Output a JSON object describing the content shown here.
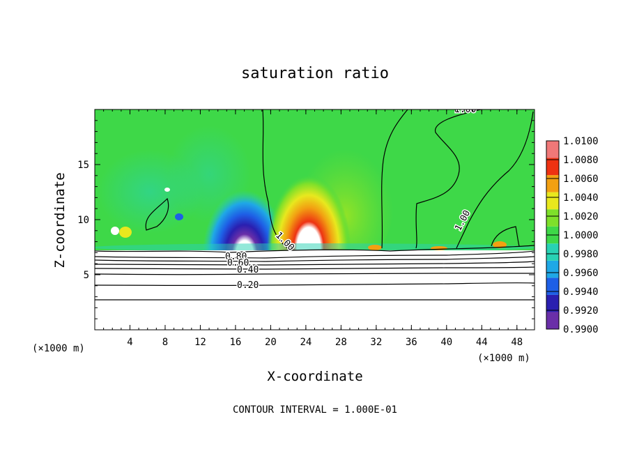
{
  "chart_data": {
    "type": "heatmap",
    "title": "saturation ratio",
    "xlabel": "X-coordinate",
    "ylabel": "Z-coordinate",
    "x_unit": "(×1000 m)",
    "y_unit": "(×1000 m)",
    "xlim": [
      0,
      50
    ],
    "ylim": [
      0,
      20
    ],
    "x_ticks": [
      "4",
      "8",
      "12",
      "16",
      "20",
      "24",
      "28",
      "32",
      "36",
      "40",
      "44",
      "48"
    ],
    "y_ticks": [
      "5",
      "10",
      "15"
    ],
    "colorbar": {
      "range": [
        0.99,
        1.01
      ],
      "labels": [
        "1.0100",
        "1.0080",
        "1.0060",
        "1.0040",
        "1.0020",
        "1.0000",
        "0.9980",
        "0.9960",
        "0.9940",
        "0.9920",
        "0.9900"
      ],
      "colors": [
        "#6a2fa8",
        "#2a1fb0",
        "#1e5fe6",
        "#1fa8e6",
        "#28d2b4",
        "#3ed848",
        "#7ee02a",
        "#e8e81e",
        "#f2a012",
        "#ee3212",
        "#f07878"
      ]
    },
    "contour_lines": [
      {
        "label": "0.20",
        "z_km": 4.0
      },
      {
        "label": "0.40",
        "z_km": 5.6
      },
      {
        "label": "0.60",
        "z_km": 6.1
      },
      {
        "label": "0.80",
        "z_km": 6.6
      },
      {
        "label": "1.00",
        "z_km": 7.1
      }
    ],
    "contour_labels_on_plot": [
      "0.20",
      "0.40",
      "0.60",
      "0.80",
      "1.00",
      "1.00",
      "1.00"
    ],
    "footer": "CONTOUR INTERVAL = 1.000E-01"
  }
}
